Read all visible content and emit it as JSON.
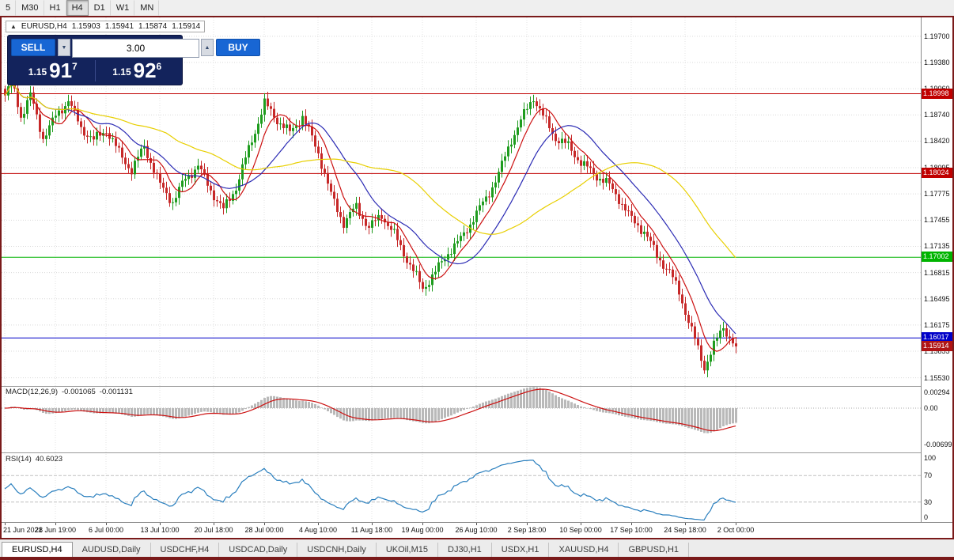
{
  "toolbar": {
    "timeframes": [
      {
        "label": "5",
        "active": false
      },
      {
        "label": "M30",
        "active": false
      },
      {
        "label": "H1",
        "active": false
      },
      {
        "label": "H4",
        "active": true
      },
      {
        "label": "D1",
        "active": false
      },
      {
        "label": "W1",
        "active": false
      },
      {
        "label": "MN",
        "active": false
      }
    ]
  },
  "icons": {
    "direction_up_icon": "▲",
    "volume_down_icon": "▼",
    "volume_up_icon": "▲"
  },
  "title_box": {
    "symbol": "EURUSD,H4",
    "open": "1.15903",
    "high": "1.15941",
    "low": "1.15874",
    "close": "1.15914"
  },
  "trade_panel": {
    "sell_label": "SELL",
    "buy_label": "BUY",
    "volume": "3.00",
    "sell_price_prefix": "1.15",
    "sell_price_big": "91",
    "sell_price_pip": "7",
    "buy_price_prefix": "1.15",
    "buy_price_big": "92",
    "buy_price_pip": "6"
  },
  "price_axis": {
    "ticks": [
      "1.19700",
      "1.19380",
      "1.19060",
      "1.18740",
      "1.18420",
      "1.18095",
      "1.17775",
      "1.17455",
      "1.17135",
      "1.16815",
      "1.16495",
      "1.16175",
      "1.15855",
      "1.15530"
    ]
  },
  "levels": [
    {
      "label": "1.18998",
      "value": 1.18998,
      "color": "#c00000"
    },
    {
      "label": "1.18024",
      "value": 1.18024,
      "color": "#c00000"
    },
    {
      "label": "1.17002",
      "value": 1.17002,
      "color": "#00b400"
    },
    {
      "label": "1.16017",
      "value": 1.16017,
      "color": "#0000c8"
    }
  ],
  "current_price": {
    "label": "1.15914",
    "value": 1.15914,
    "color": "#b01414"
  },
  "macd_panel": {
    "name": "MACD(12,26,9)",
    "value1": "-0.001065",
    "value2": "-0.001131",
    "axis": [
      {
        "label": "0.00294",
        "value": 0.00294
      },
      {
        "label": "0.00",
        "value": 0
      },
      {
        "label": "-0.00699",
        "value": -0.00699
      }
    ]
  },
  "rsi_panel": {
    "name": "RSI(14)",
    "value": "40.6023",
    "axis": [
      {
        "label": "100",
        "value": 100
      },
      {
        "label": "70",
        "value": 70
      },
      {
        "label": "30",
        "value": 30
      },
      {
        "label": "0",
        "value": 0
      }
    ],
    "levels": [
      70,
      30
    ]
  },
  "time_axis": {
    "labels": [
      {
        "text": "21 Jun 2021",
        "i": 0
      },
      {
        "text": "28 Jun 19:00",
        "i": 16
      },
      {
        "text": "6 Jul 00:00",
        "i": 32
      },
      {
        "text": "13 Jul 10:00",
        "i": 49
      },
      {
        "text": "20 Jul 18:00",
        "i": 66
      },
      {
        "text": "28 Jul 00:00",
        "i": 82
      },
      {
        "text": "4 Aug 10:00",
        "i": 99
      },
      {
        "text": "11 Aug 18:00",
        "i": 116
      },
      {
        "text": "19 Aug 00:00",
        "i": 132
      },
      {
        "text": "26 Aug 10:00",
        "i": 149
      },
      {
        "text": "2 Sep 18:00",
        "i": 165
      },
      {
        "text": "10 Sep 00:00",
        "i": 182
      },
      {
        "text": "17 Sep 10:00",
        "i": 198
      },
      {
        "text": "24 Sep 18:00",
        "i": 215
      },
      {
        "text": "2 Oct 00:00",
        "i": 231
      }
    ]
  },
  "tabs": [
    {
      "label": "EURUSD,H4",
      "active": true
    },
    {
      "label": "AUDUSD,Daily",
      "active": false
    },
    {
      "label": "USDCHF,H4",
      "active": false
    },
    {
      "label": "USDCAD,Daily",
      "active": false
    },
    {
      "label": "USDCNH,Daily",
      "active": false
    },
    {
      "label": "UKOil,M15",
      "active": false
    },
    {
      "label": "DJ30,H1",
      "active": false
    },
    {
      "label": "USDX,H1",
      "active": false
    },
    {
      "label": "XAUUSD,H4",
      "active": false
    },
    {
      "label": "GBPUSD,H1",
      "active": false
    }
  ],
  "chart_data": {
    "type": "candlestick",
    "symbol": "EURUSD",
    "timeframe": "H4",
    "count": 232,
    "last_close": 1.15914,
    "y_range": {
      "max": 1.1993,
      "min": 1.1544
    },
    "price_path": [
      [
        0,
        1.1895
      ],
      [
        2,
        1.192
      ],
      [
        5,
        1.1872
      ],
      [
        8,
        1.1898
      ],
      [
        12,
        1.1846
      ],
      [
        16,
        1.1872
      ],
      [
        20,
        1.1892
      ],
      [
        24,
        1.1858
      ],
      [
        28,
        1.1843
      ],
      [
        32,
        1.1856
      ],
      [
        36,
        1.1828
      ],
      [
        40,
        1.1806
      ],
      [
        44,
        1.1836
      ],
      [
        49,
        1.1788
      ],
      [
        53,
        1.1768
      ],
      [
        57,
        1.1796
      ],
      [
        61,
        1.1812
      ],
      [
        65,
        1.1782
      ],
      [
        69,
        1.1758
      ],
      [
        73,
        1.1786
      ],
      [
        77,
        1.1832
      ],
      [
        82,
        1.1888
      ],
      [
        86,
        1.1868
      ],
      [
        90,
        1.1852
      ],
      [
        94,
        1.1872
      ],
      [
        99,
        1.1828
      ],
      [
        103,
        1.1776
      ],
      [
        107,
        1.1742
      ],
      [
        111,
        1.1762
      ],
      [
        115,
        1.1736
      ],
      [
        119,
        1.1752
      ],
      [
        123,
        1.1728
      ],
      [
        127,
        1.1698
      ],
      [
        132,
        1.1662
      ],
      [
        136,
        1.1682
      ],
      [
        140,
        1.1706
      ],
      [
        144,
        1.1722
      ],
      [
        148,
        1.1748
      ],
      [
        152,
        1.1772
      ],
      [
        156,
        1.1802
      ],
      [
        160,
        1.1844
      ],
      [
        165,
        1.1882
      ],
      [
        167,
        1.1896
      ],
      [
        170,
        1.1872
      ],
      [
        174,
        1.1846
      ],
      [
        178,
        1.1836
      ],
      [
        182,
        1.1816
      ],
      [
        186,
        1.1802
      ],
      [
        190,
        1.1792
      ],
      [
        194,
        1.1772
      ],
      [
        198,
        1.1746
      ],
      [
        202,
        1.1732
      ],
      [
        206,
        1.1702
      ],
      [
        210,
        1.1682
      ],
      [
        213,
        1.1658
      ],
      [
        216,
        1.1622
      ],
      [
        219,
        1.1588
      ],
      [
        221,
        1.1566
      ],
      [
        224,
        1.1592
      ],
      [
        227,
        1.1616
      ],
      [
        229,
        1.1602
      ],
      [
        231,
        1.15914
      ]
    ],
    "ma": [
      {
        "period": 8,
        "color": "#cc1111"
      },
      {
        "period": 20,
        "color": "#2b2bb4"
      },
      {
        "period": 52,
        "color": "#e8cf00"
      }
    ],
    "colors": {
      "up": "#1e9c1e",
      "down": "#c62828",
      "macd_hist": "#b9b9b9",
      "macd_signal": "#cc1111",
      "rsi": "#2a7fbe",
      "grid": "#d9d9d9",
      "vgrid": "#e3e3e3"
    }
  }
}
